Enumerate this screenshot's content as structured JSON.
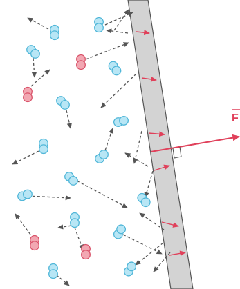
{
  "labels": {
    "force": "F"
  },
  "colors": {
    "wall_fill": "#d3d3d3",
    "wall_stroke": "#555555",
    "molecule_blue": "#b8e6f5",
    "molecule_blue_stroke": "#4fb6d8",
    "molecule_red": "#f2a7b2",
    "molecule_red_stroke": "#d9536a",
    "arrow_gray": "#555555",
    "arrow_red": "#e0405a"
  }
}
